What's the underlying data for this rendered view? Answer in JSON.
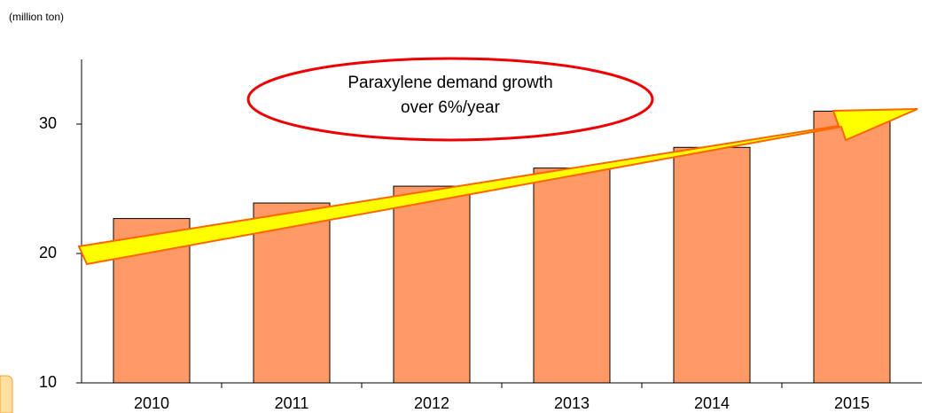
{
  "chart_data": {
    "type": "bar",
    "y_axis_label": "(million ton)",
    "annotation": [
      "Paraxylene demand growth",
      "over 6%/year"
    ],
    "categories": [
      "2010",
      "2011",
      "2012",
      "2013",
      "2014",
      "2015"
    ],
    "values": [
      22.7,
      23.9,
      25.2,
      26.6,
      28.2,
      31.0
    ],
    "color": "#ff9966",
    "ylim": [
      10,
      35
    ],
    "yticks": [
      10,
      20,
      30
    ],
    "grid": false
  }
}
